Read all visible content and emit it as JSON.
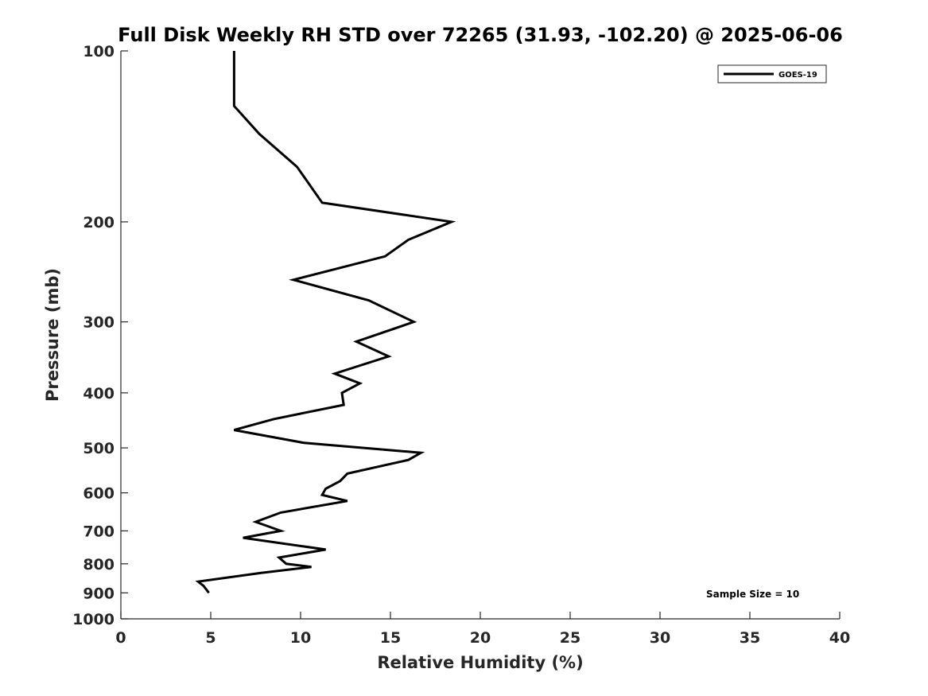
{
  "chart_data": {
    "type": "line",
    "title": "Full Disk Weekly RH STD over 72265 (31.93, -102.20) @ 2025-06-06",
    "xlabel": "Relative Humidity (%)",
    "ylabel": "Pressure (mb)",
    "xlim": [
      0,
      40
    ],
    "ylim": [
      1000,
      100
    ],
    "y_scale": "log",
    "x_ticks": [
      0,
      5,
      10,
      15,
      20,
      25,
      30,
      35,
      40
    ],
    "y_ticks": [
      100,
      200,
      300,
      400,
      500,
      600,
      700,
      800,
      900,
      1000
    ],
    "grid": false,
    "legend_position": "top-right",
    "series": [
      {
        "name": "GOES-19",
        "color": "#000000",
        "points": [
          {
            "x": 6.3,
            "y": 100
          },
          {
            "x": 6.3,
            "y": 115
          },
          {
            "x": 6.3,
            "y": 125
          },
          {
            "x": 7.7,
            "y": 140
          },
          {
            "x": 9.8,
            "y": 160
          },
          {
            "x": 11.2,
            "y": 185
          },
          {
            "x": 18.4,
            "y": 200
          },
          {
            "x": 16.0,
            "y": 215
          },
          {
            "x": 14.7,
            "y": 230
          },
          {
            "x": 9.6,
            "y": 253
          },
          {
            "x": 13.8,
            "y": 275
          },
          {
            "x": 16.3,
            "y": 300
          },
          {
            "x": 13.1,
            "y": 325
          },
          {
            "x": 14.9,
            "y": 345
          },
          {
            "x": 11.9,
            "y": 370
          },
          {
            "x": 13.3,
            "y": 385
          },
          {
            "x": 12.3,
            "y": 400
          },
          {
            "x": 12.4,
            "y": 420
          },
          {
            "x": 8.5,
            "y": 445
          },
          {
            "x": 6.3,
            "y": 465
          },
          {
            "x": 10.2,
            "y": 490
          },
          {
            "x": 16.7,
            "y": 510
          },
          {
            "x": 16.0,
            "y": 525
          },
          {
            "x": 12.6,
            "y": 555
          },
          {
            "x": 12.2,
            "y": 572
          },
          {
            "x": 11.4,
            "y": 590
          },
          {
            "x": 11.2,
            "y": 605
          },
          {
            "x": 12.6,
            "y": 620
          },
          {
            "x": 8.9,
            "y": 650
          },
          {
            "x": 7.5,
            "y": 675
          },
          {
            "x": 8.9,
            "y": 700
          },
          {
            "x": 6.8,
            "y": 720
          },
          {
            "x": 11.4,
            "y": 755
          },
          {
            "x": 8.8,
            "y": 780
          },
          {
            "x": 9.2,
            "y": 800
          },
          {
            "x": 10.6,
            "y": 810
          },
          {
            "x": 7.8,
            "y": 830
          },
          {
            "x": 4.3,
            "y": 860
          },
          {
            "x": 4.6,
            "y": 875
          },
          {
            "x": 4.9,
            "y": 900
          }
        ]
      }
    ],
    "annotations": [
      "Sample Size = 10"
    ]
  }
}
